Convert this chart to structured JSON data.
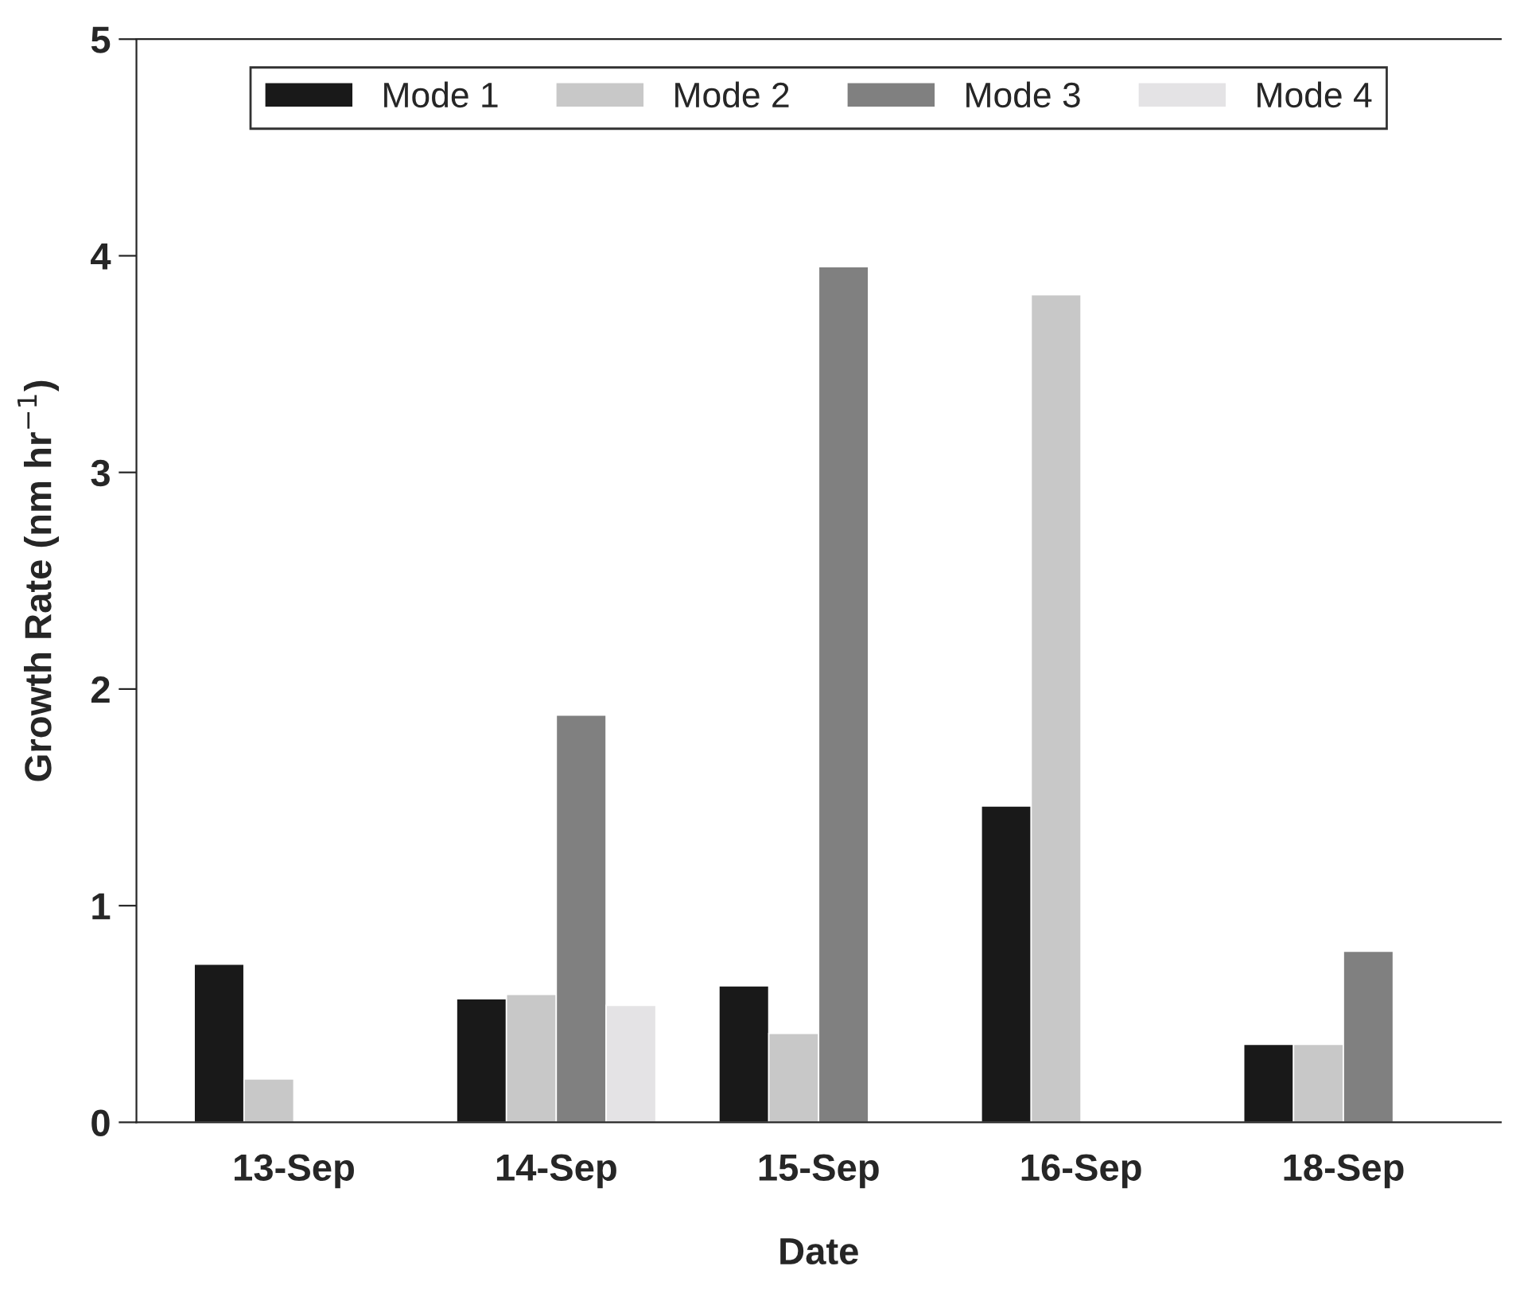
{
  "chart_data": {
    "type": "bar",
    "xlabel": "Date",
    "ylabel": "Growth Rate (nm hr$^{−1}$)",
    "categories": [
      "13-Sep",
      "14-Sep",
      "15-Sep",
      "16-Sep",
      "18-Sep"
    ],
    "series": [
      {
        "name": "Mode 1",
        "color": "#191919",
        "values": [
          0.73,
          0.57,
          0.63,
          1.46,
          0.36
        ]
      },
      {
        "name": "Mode 2",
        "color": "#c8c8c8",
        "values": [
          0.2,
          0.59,
          0.41,
          3.82,
          0.36
        ]
      },
      {
        "name": "Mode 3",
        "color": "#808080",
        "values": [
          null,
          1.88,
          3.95,
          null,
          0.79
        ]
      },
      {
        "name": "Mode 4",
        "color": "#e4e3e5",
        "values": [
          null,
          0.54,
          null,
          null,
          null
        ]
      }
    ],
    "ylim": [
      0,
      5
    ],
    "yticks": [
      0,
      1,
      2,
      3,
      4,
      5
    ],
    "grid": false,
    "legend": "top"
  }
}
